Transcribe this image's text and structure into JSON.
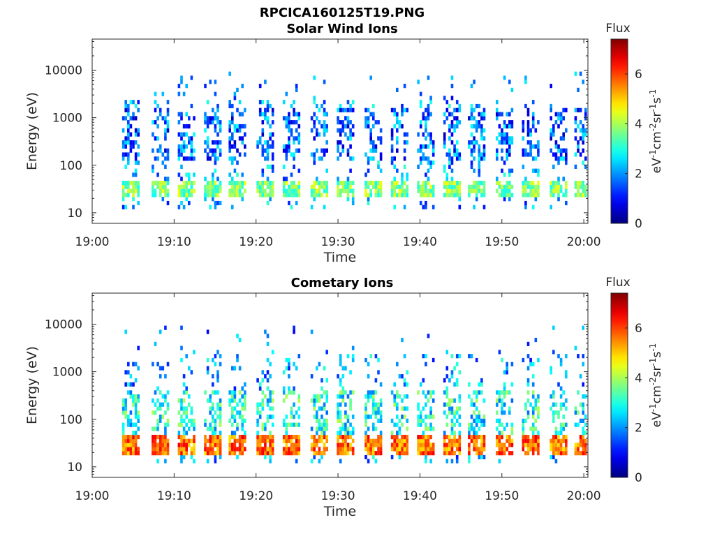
{
  "figure": {
    "title_line1": "RPCICA160125T19.PNG"
  },
  "colorbar": {
    "colormap": "jet",
    "range": [
      0,
      7.4
    ],
    "ticks": [
      "0",
      "2",
      "4",
      "6"
    ],
    "label_text": "Flux",
    "unit_main": "eV",
    "unit_parts": [
      {
        "t": "eV",
        "sup": false
      },
      {
        "t": "-1",
        "sup": true
      },
      {
        "t": "cm",
        "sup": false
      },
      {
        "t": "-2",
        "sup": true
      },
      {
        "t": "sr",
        "sup": false
      },
      {
        "t": "-1",
        "sup": true
      },
      {
        "t": "s",
        "sup": false
      },
      {
        "t": "-1",
        "sup": true
      }
    ]
  },
  "chart_data": [
    {
      "type": "heatmap",
      "title": "Solar Wind Ions",
      "xlabel": "Time",
      "ylabel": "Energy (eV)",
      "x_ticks": [
        "19:00",
        "19:10",
        "19:20",
        "19:30",
        "19:40",
        "19:50",
        "20:00"
      ],
      "y_ticks": [
        "10",
        "100",
        "1000",
        "10000"
      ],
      "y_scale": "log",
      "y_range": [
        6,
        45000
      ],
      "x_range_min": [
        0,
        60.5
      ],
      "bursts_time_min": [
        4.6,
        8.2,
        11.4,
        14.6,
        17.6,
        21.0,
        24.2,
        27.6,
        30.8,
        34.2,
        37.4,
        40.6,
        43.8,
        46.8,
        50.2,
        53.4,
        56.8,
        59.8
      ],
      "peak_flux": 4.6,
      "low_energy_band_eV": [
        18,
        45
      ],
      "spread_energy_eV": [
        120,
        1500
      ]
    },
    {
      "type": "heatmap",
      "title": "Cometary Ions",
      "xlabel": "Time",
      "ylabel": "Energy (eV)",
      "x_ticks": [
        "19:00",
        "19:10",
        "19:20",
        "19:30",
        "19:40",
        "19:50",
        "20:00"
      ],
      "y_ticks": [
        "10",
        "100",
        "1000",
        "10000"
      ],
      "y_scale": "log",
      "y_range": [
        6,
        45000
      ],
      "x_range_min": [
        0,
        60.5
      ],
      "bursts_time_min": [
        4.6,
        8.2,
        11.4,
        14.6,
        17.6,
        21.0,
        24.2,
        27.6,
        30.8,
        34.2,
        37.4,
        40.6,
        43.8,
        46.8,
        50.2,
        53.4,
        56.8,
        59.8
      ],
      "peak_flux": 6.6,
      "low_energy_band_eV": [
        15,
        45
      ],
      "spread_energy_eV": [
        40,
        400
      ]
    }
  ]
}
